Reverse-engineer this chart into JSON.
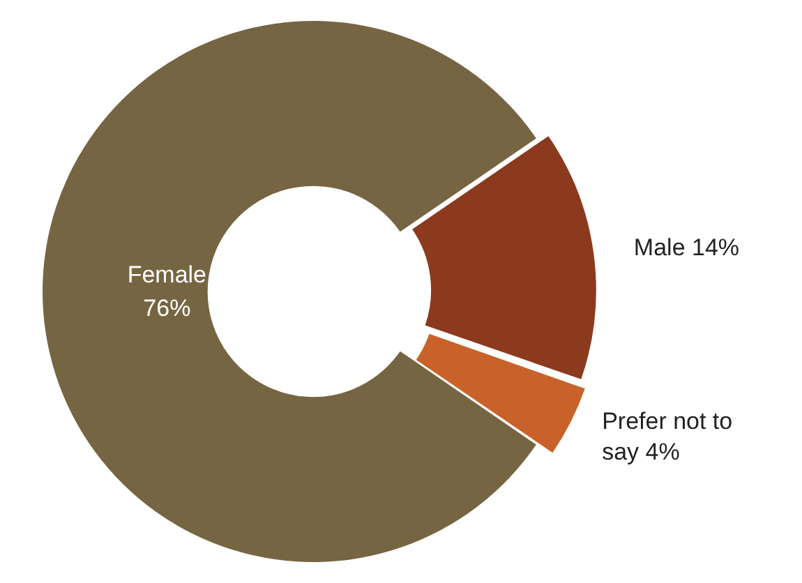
{
  "chart_data": {
    "type": "donut",
    "categories": [
      "Female",
      "Male",
      "Prefer not to say"
    ],
    "values": [
      76,
      14,
      4
    ],
    "value_labels": [
      "76%",
      "14%",
      "4%"
    ],
    "colors": [
      "#766542",
      "#8b3a1e",
      "#c8622a"
    ],
    "legend": false
  }
}
